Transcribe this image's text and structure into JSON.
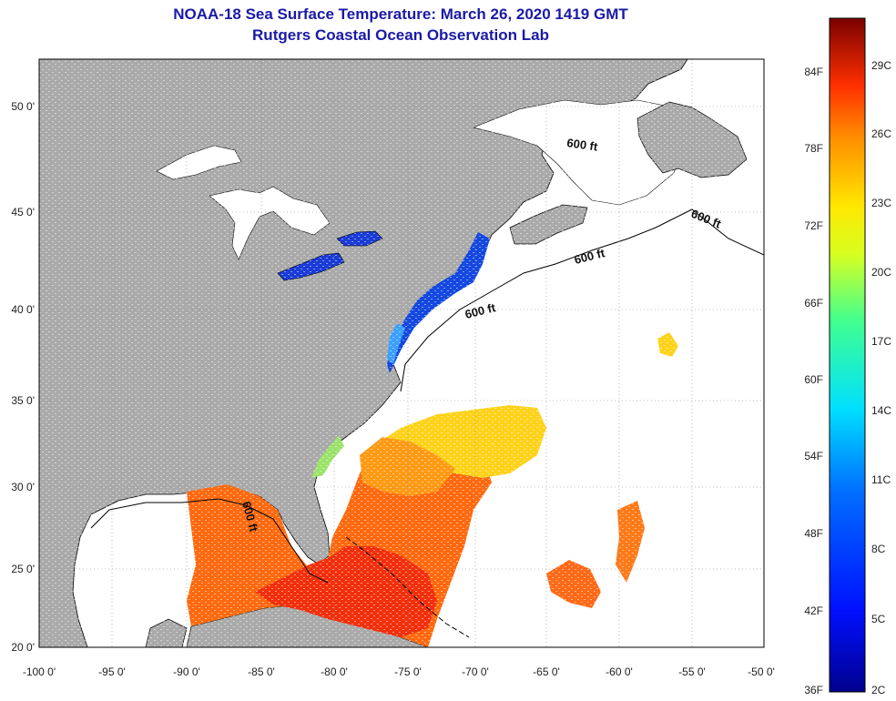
{
  "title_line1": "NOAA-18 Sea Surface Temperature:  March 26, 2020 1419 GMT",
  "title_line2": "Rutgers Coastal Ocean Observation Lab",
  "lon_ticks": [
    "-100 0'",
    "-95 0'",
    "-90 0'",
    "-85 0'",
    "-80 0'",
    "-75 0'",
    "-70 0'",
    "-65 0'",
    "-60 0'",
    "-55 0'",
    "-50 0'"
  ],
  "lat_ticks": [
    "20 0'",
    "25 0'",
    "30 0'",
    "35 0'",
    "40 0'",
    "45 0'",
    "50 0'"
  ],
  "contour_label": "600 ft",
  "colorbar": {
    "fahrenheit": [
      "36F",
      "42F",
      "48F",
      "54F",
      "60F",
      "66F",
      "72F",
      "78F",
      "84F"
    ],
    "celsius": [
      "2C",
      "5C",
      "8C",
      "11C",
      "14C",
      "17C",
      "20C",
      "23C",
      "26C",
      "29C"
    ]
  },
  "colors": {
    "title": "#1a1aa6",
    "land": "#aaaaaa",
    "ocean": "#ffffff"
  }
}
